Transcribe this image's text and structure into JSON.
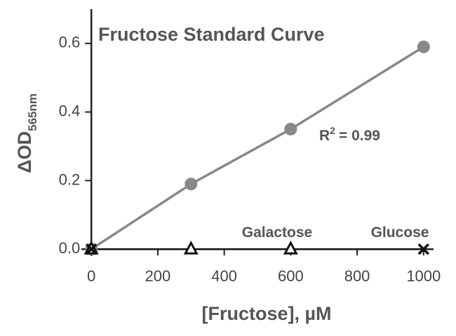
{
  "chart_data": {
    "type": "scatter",
    "title": "Fructose Standard Curve",
    "x_label": "[Fructose], µM",
    "y_label": {
      "main": "ΔOD",
      "sub": "565nm"
    },
    "xlim": [
      -30,
      1030
    ],
    "xticks": [
      0,
      200,
      400,
      600,
      800,
      1000
    ],
    "ylim": [
      -0.02,
      0.7
    ],
    "yticks": [
      {
        "value": 0,
        "label": "0.0"
      },
      0.2,
      0.4,
      0.6
    ],
    "series": [
      {
        "name": "Fructose",
        "color": "#888888",
        "marker": "circle",
        "x": [
          0,
          300,
          600,
          1000
        ],
        "values": [
          0,
          0.19,
          0.35,
          0.59
        ]
      },
      {
        "name": "Galactose",
        "color": "#111111",
        "marker": "triangle",
        "x": [
          0,
          300,
          600
        ],
        "values": [
          0,
          0,
          0
        ]
      },
      {
        "name": "Glucose",
        "color": "#111111",
        "marker": "cross",
        "x": [
          0,
          1000
        ],
        "values": [
          0,
          0
        ]
      }
    ],
    "annotation": {
      "base": "R",
      "sup": "2",
      "rest": "= 0.99"
    }
  }
}
